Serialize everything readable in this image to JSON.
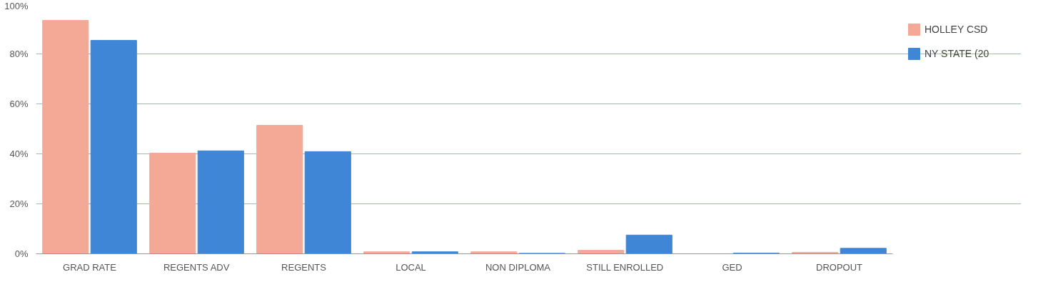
{
  "chart_data": {
    "type": "bar",
    "categories": [
      "GRAD RATE",
      "REGENTS ADV",
      "REGENTS",
      "LOCAL",
      "NON DIPLOMA",
      "STILL ENROLLED",
      "GED",
      "DROPOUT"
    ],
    "series": [
      {
        "name": "HOLLEY CSD",
        "color": "#f4a896",
        "values": [
          93.4,
          40.3,
          51.4,
          0.8,
          0.8,
          1.4,
          0,
          0.6
        ]
      },
      {
        "name": "NY STATE (20",
        "color": "#3f86d6",
        "values": [
          85.4,
          41.2,
          40.9,
          0.8,
          0.2,
          7.5,
          0.3,
          2.2
        ]
      }
    ],
    "ylim": [
      0,
      100
    ],
    "yticks": [
      {
        "value": 0,
        "label": "0%"
      },
      {
        "value": 20,
        "label": "20%"
      },
      {
        "value": 40,
        "label": "40%"
      },
      {
        "value": 60,
        "label": "60%"
      },
      {
        "value": 80,
        "label": "80%"
      },
      {
        "value": 100,
        "label": "100%"
      }
    ],
    "grid": "y",
    "legend": "top right"
  }
}
